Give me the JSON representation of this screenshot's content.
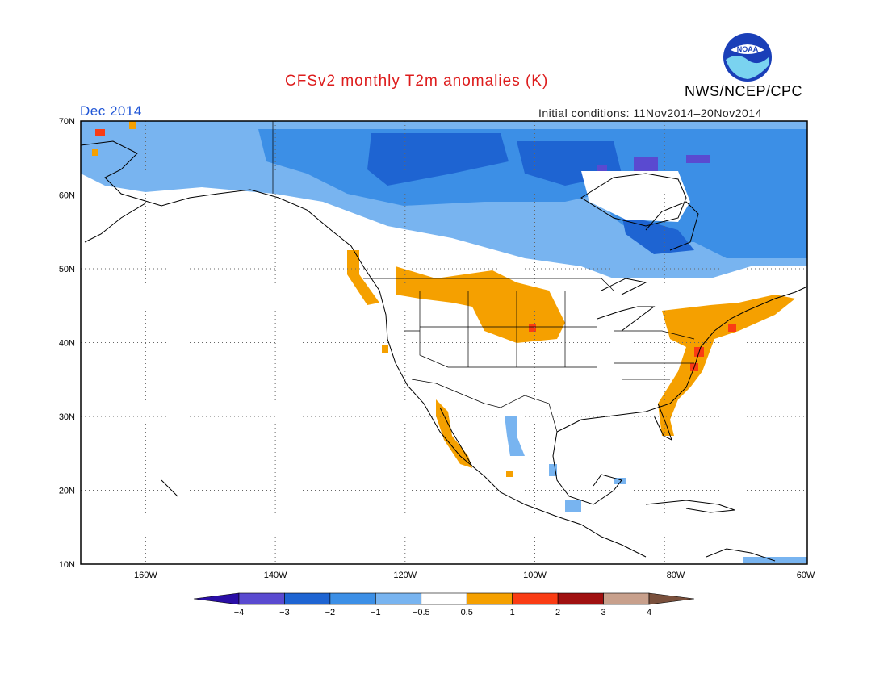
{
  "header": {
    "title": "CFSv2 monthly T2m anomalies (K)",
    "title_color": "#dd1c1c",
    "month": "Dec 2014",
    "month_color": "#1f55d6",
    "initial_conditions": "Initial conditions: 11Nov2014–20Nov2014",
    "agency": "NWS/NCEP/CPC",
    "logo_text": "NOAA"
  },
  "map": {
    "projection": "lat-lon",
    "lon_range": [
      -172,
      -60
    ],
    "lat_range": [
      10,
      70
    ],
    "lat_labels": [
      "70N",
      "60N",
      "50N",
      "40N",
      "30N",
      "20N",
      "10N"
    ],
    "lon_labels": [
      "160W",
      "140W",
      "120W",
      "100W",
      "80W",
      "60W"
    ],
    "grid_style": "dotted"
  },
  "legend": {
    "colors": [
      "#2a0ea6",
      "#5a4ad0",
      "#1e64d2",
      "#3c8fe6",
      "#78b4f0",
      "#ffffff",
      "#f5a000",
      "#fa3c14",
      "#a01010",
      "#c8a08c",
      "#7a503c"
    ],
    "tick_labels": [
      "−4",
      "−3",
      "−2",
      "−1",
      "−0.5",
      "0.5",
      "1",
      "2",
      "3",
      "4"
    ]
  }
}
